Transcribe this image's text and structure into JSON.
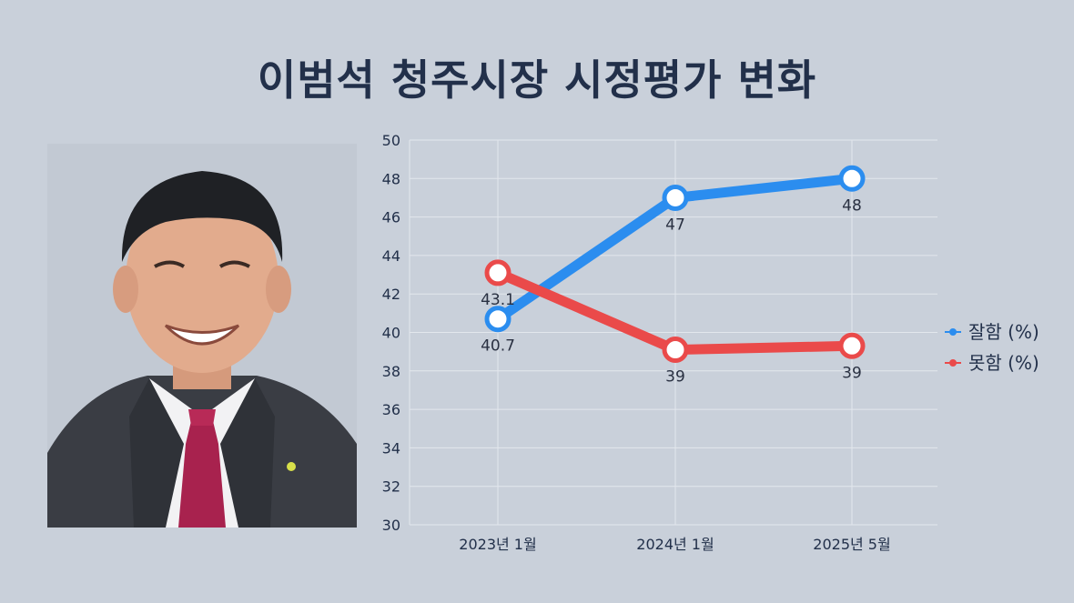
{
  "title": "이범석 청주시장 시정평가 변화",
  "colors": {
    "background": "#c9d0da",
    "title": "#22304a",
    "good": "#2b8def",
    "bad": "#ea4a4a"
  },
  "chart_data": {
    "type": "line",
    "title": "이범석 청주시장 시정평가 변화",
    "categories": [
      "2023년 1월",
      "2024년 1월",
      "2025년 5월"
    ],
    "ylim": [
      30,
      50
    ],
    "yticks": [
      30,
      32,
      34,
      36,
      38,
      40,
      42,
      44,
      46,
      48,
      50
    ],
    "grid": true,
    "legend_position": "right",
    "series": [
      {
        "name": "잘함 (%)",
        "color": "#2b8def",
        "values": [
          40.7,
          47,
          48
        ],
        "labels": [
          "40.7",
          "47",
          "48"
        ]
      },
      {
        "name": "못함 (%)",
        "color": "#ea4a4a",
        "values": [
          43.1,
          39.1,
          39.3
        ],
        "labels": [
          "43.1",
          "39",
          "39"
        ]
      }
    ]
  }
}
